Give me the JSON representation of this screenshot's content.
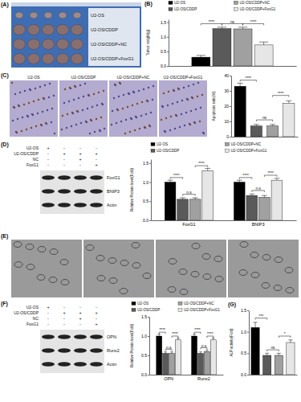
{
  "figure": {
    "A": {
      "label": "(A)",
      "groups": [
        "U2-OS",
        "U2-OS/CDDP",
        "U2-OS/CDDP+NC",
        "U2-OS/CDDP+FoxG1"
      ]
    },
    "C": {
      "label": "(C)",
      "groups": [
        "U2-OS",
        "U2-OS/CDDP",
        "U2-OS/CDDP+NC",
        "U2-OS/CDDP+FoxG1"
      ]
    },
    "D": {
      "label": "(D)",
      "conditions": [
        {
          "name": "U2-OS",
          "marks": [
            "+",
            "-",
            "-",
            "-"
          ]
        },
        {
          "name": "U2-OS/CDDP",
          "marks": [
            "-",
            "+",
            "+",
            "+"
          ]
        },
        {
          "name": "NC",
          "marks": [
            "-",
            "-",
            "+",
            "-"
          ]
        },
        {
          "name": "FoxG1",
          "marks": [
            "-",
            "-",
            "-",
            "+"
          ]
        }
      ],
      "bands": [
        "FoxG1",
        "BNIP3",
        "Actin"
      ]
    },
    "E": {
      "label": "(E)"
    },
    "F": {
      "label": "(F)",
      "conditions": [
        {
          "name": "U2-OS",
          "marks": [
            "+",
            "-",
            "-",
            "-"
          ]
        },
        {
          "name": "U2-OS/CDDP",
          "marks": [
            "-",
            "+",
            "+",
            "+"
          ]
        },
        {
          "name": "NC",
          "marks": [
            "-",
            "-",
            "+",
            "-"
          ]
        },
        {
          "name": "FoxG1",
          "marks": [
            "-",
            "-",
            "-",
            "+"
          ]
        }
      ],
      "bands": [
        "OPN",
        "Runx2",
        "Actin"
      ]
    }
  },
  "chart_data": [
    {
      "type": "bar",
      "title": "(B)",
      "y_label": "Tumor weight(g)",
      "legend": "top",
      "categories": [
        null
      ],
      "series": [
        {
          "name": "U2-OS",
          "color": "#000000",
          "values": [
            0.3
          ],
          "errors": [
            0.06
          ]
        },
        {
          "name": "U2-OS/CDDP",
          "color": "#5a5a5a",
          "values": [
            1.28
          ],
          "errors": [
            0.05
          ]
        },
        {
          "name": "U2-OS/CDDP+NC",
          "color": "#a0a0a0",
          "values": [
            1.27
          ],
          "errors": [
            0.06
          ]
        },
        {
          "name": "U2-OS/CDDP+FoxG1",
          "color": "#e6e6e6",
          "values": [
            0.72
          ],
          "errors": [
            0.1
          ]
        }
      ],
      "ylim": [
        0,
        1.6
      ],
      "yticks": [
        {
          "value": 0,
          "label": "0.0"
        },
        0.5,
        {
          "value": 1,
          "label": "1.0"
        },
        1.5
      ],
      "annotations": [
        {
          "text": "****",
          "category": 0,
          "from": 0,
          "to": 1,
          "y": 1.45
        },
        {
          "text": "ns",
          "category": 0,
          "from": 1,
          "to": 2,
          "y": 1.45
        },
        {
          "text": "****",
          "category": 0,
          "from": 2,
          "to": 3,
          "y": 1.45
        }
      ]
    },
    {
      "type": "bar",
      "y_label": "Apoptosis ratio(%)",
      "categories": [
        null,
        null,
        null,
        null
      ],
      "values": [
        33,
        7,
        7,
        22
      ],
      "errors": [
        2,
        1,
        1,
        1.5
      ],
      "colors": [
        "#000000",
        "#5a5a5a",
        "#a0a0a0",
        "#e6e6e6"
      ],
      "ylim": [
        0,
        40
      ],
      "yticks": [
        0,
        10,
        20,
        30,
        40
      ],
      "annotations": [
        {
          "text": "****",
          "from": 0,
          "to": 1,
          "y": 37
        },
        {
          "text": "ns",
          "from": 1,
          "to": 2,
          "y": 11
        },
        {
          "text": "****",
          "from": 2,
          "to": 3,
          "y": 27
        }
      ]
    },
    {
      "type": "bar",
      "y_label": "Relative Protein level(Fold)",
      "legend": "top",
      "categories": [
        "FoxG1",
        "BNIP3"
      ],
      "series": [
        {
          "name": "U2-OS",
          "color": "#000000",
          "values": [
            1,
            1
          ],
          "errors": [
            0.05,
            0.05
          ]
        },
        {
          "name": "U2-OS/CDDP",
          "color": "#5a5a5a",
          "values": [
            0.55,
            0.65
          ],
          "errors": [
            0.04,
            0.04
          ]
        },
        {
          "name": "U2-OS/CDDP+NC",
          "color": "#a0a0a0",
          "values": [
            0.55,
            0.6
          ],
          "errors": [
            0.04,
            0.05
          ]
        },
        {
          "name": "U2-OS/CDDP+FoxG1",
          "color": "#e6e6e6",
          "values": [
            1.3,
            1.05
          ],
          "errors": [
            0.06,
            0.05
          ]
        }
      ],
      "ylim": [
        0,
        1.6
      ],
      "yticks": [
        {
          "value": 0,
          "label": "0.0"
        },
        0.5,
        {
          "value": 1,
          "label": "1.0"
        },
        1.5
      ],
      "annotations": [
        {
          "text": "****",
          "category": 0,
          "from": 0,
          "to": 1,
          "y": 1.12
        },
        {
          "text": "n.s",
          "category": 0,
          "from": 1,
          "to": 2,
          "y": 0.68
        },
        {
          "text": "****",
          "category": 0,
          "from": 2,
          "to": 3,
          "y": 1.43
        },
        {
          "text": "****",
          "category": 1,
          "from": 0,
          "to": 1,
          "y": 1.12
        },
        {
          "text": "n.s",
          "category": 1,
          "from": 1,
          "to": 2,
          "y": 0.78
        },
        {
          "text": "****",
          "category": 1,
          "from": 2,
          "to": 3,
          "y": 1.18
        }
      ]
    },
    {
      "type": "bar",
      "y_label": "Relative Protein level(Fold)",
      "legend": "top",
      "categories": [
        "OPN",
        "Runx2"
      ],
      "series": [
        {
          "name": "U2-OS",
          "color": "#000000",
          "values": [
            1,
            1
          ],
          "errors": [
            0.05,
            0.05
          ]
        },
        {
          "name": "U2-OS/CDDP",
          "color": "#5a5a5a",
          "values": [
            0.55,
            0.55
          ],
          "errors": [
            0.04,
            0.04
          ]
        },
        {
          "name": "U2-OS/CDDP+NC",
          "color": "#a0a0a0",
          "values": [
            0.55,
            0.6
          ],
          "errors": [
            0.04,
            0.04
          ]
        },
        {
          "name": "U2-OS/CDDP+FoxG1",
          "color": "#e6e6e6",
          "values": [
            0.9,
            0.9
          ],
          "errors": [
            0.05,
            0.05
          ]
        }
      ],
      "ylim": [
        0,
        1.5
      ],
      "yticks": [
        {
          "value": 0,
          "label": "0.0"
        },
        0.5,
        {
          "value": 1,
          "label": "1.0"
        },
        1.5
      ],
      "annotations": [
        {
          "text": "****",
          "category": 0,
          "from": 0,
          "to": 1,
          "y": 1.1
        },
        {
          "text": "n.s",
          "category": 0,
          "from": 1,
          "to": 2,
          "y": 0.66
        },
        {
          "text": "****",
          "category": 0,
          "from": 2,
          "to": 3,
          "y": 1.0
        },
        {
          "text": "****",
          "category": 1,
          "from": 0,
          "to": 1,
          "y": 1.1
        },
        {
          "text": "n.s",
          "category": 1,
          "from": 1,
          "to": 2,
          "y": 0.7
        },
        {
          "text": "****",
          "category": 1,
          "from": 2,
          "to": 3,
          "y": 1.0
        }
      ]
    },
    {
      "type": "bar",
      "title": "(G)",
      "y_label": "ALP activity(Fold)",
      "categories": [
        null,
        null,
        null,
        null
      ],
      "values": [
        1.1,
        0.45,
        0.45,
        0.75
      ],
      "errors": [
        0.12,
        0.05,
        0.05,
        0.06
      ],
      "colors": [
        "#000000",
        "#5a5a5a",
        "#a0a0a0",
        "#e6e6e6"
      ],
      "ylim": [
        0,
        1.5
      ],
      "yticks": [
        {
          "value": 0,
          "label": "0.0"
        },
        0.5,
        {
          "value": 1,
          "label": "1.0"
        },
        1.5
      ],
      "annotations": [
        {
          "text": "***",
          "from": 0,
          "to": 1,
          "y": 1.32
        },
        {
          "text": "ns",
          "from": 1,
          "to": 2,
          "y": 0.58
        },
        {
          "text": "*",
          "from": 2,
          "to": 3,
          "y": 0.9
        }
      ]
    }
  ]
}
